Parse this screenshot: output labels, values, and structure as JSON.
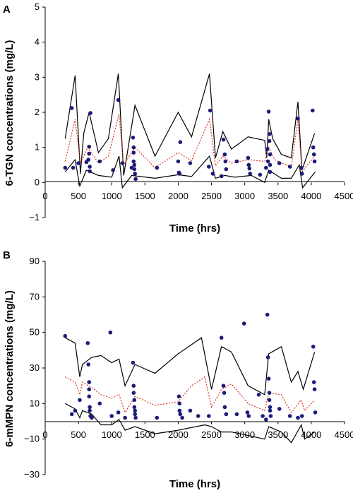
{
  "chart_data": [
    {
      "type": "scatter",
      "panel_label": "A",
      "xlabel": "Time (hrs)",
      "ylabel": "6-TGN concentrations (mg/L)",
      "xlim": [
        0,
        4500
      ],
      "ylim": [
        -1,
        5
      ],
      "x_ticks": [
        0,
        500,
        1000,
        1500,
        2000,
        2500,
        3000,
        3500,
        4000,
        4500
      ],
      "y_ticks": [
        -1,
        0,
        1,
        2,
        3,
        4,
        5
      ],
      "points": [
        [
          300,
          0.42
        ],
        [
          400,
          2.12
        ],
        [
          420,
          0.42
        ],
        [
          500,
          0.55
        ],
        [
          620,
          0.58
        ],
        [
          650,
          0.65
        ],
        [
          660,
          1.02
        ],
        [
          660,
          0.82
        ],
        [
          670,
          0.45
        ],
        [
          670,
          0.32
        ],
        [
          680,
          1.98
        ],
        [
          820,
          0.6
        ],
        [
          1020,
          0.35
        ],
        [
          1100,
          2.35
        ],
        [
          1160,
          0.55
        ],
        [
          1300,
          0.42
        ],
        [
          1320,
          1.28
        ],
        [
          1330,
          1.0
        ],
        [
          1330,
          0.85
        ],
        [
          1330,
          0.6
        ],
        [
          1340,
          0.5
        ],
        [
          1340,
          0.38
        ],
        [
          1350,
          0.25
        ],
        [
          1360,
          0.1
        ],
        [
          1680,
          0.42
        ],
        [
          2000,
          0.6
        ],
        [
          2010,
          0.28
        ],
        [
          2020,
          0.25
        ],
        [
          2030,
          1.15
        ],
        [
          2180,
          0.55
        ],
        [
          2460,
          0.45
        ],
        [
          2480,
          2.05
        ],
        [
          2520,
          0.25
        ],
        [
          2650,
          0.18
        ],
        [
          2680,
          1.22
        ],
        [
          2700,
          0.8
        ],
        [
          2710,
          0.6
        ],
        [
          2720,
          0.38
        ],
        [
          2880,
          0.6
        ],
        [
          3050,
          0.7
        ],
        [
          3060,
          0.5
        ],
        [
          3070,
          0.4
        ],
        [
          3080,
          0.25
        ],
        [
          3230,
          0.22
        ],
        [
          3320,
          0.42
        ],
        [
          3340,
          0.95
        ],
        [
          3350,
          0.6
        ],
        [
          3360,
          2.02
        ],
        [
          3370,
          1.38
        ],
        [
          3370,
          1.18
        ],
        [
          3380,
          0.8
        ],
        [
          3380,
          0.5
        ],
        [
          3380,
          0.3
        ],
        [
          3520,
          0.55
        ],
        [
          3680,
          0.45
        ],
        [
          3800,
          1.82
        ],
        [
          3850,
          0.42
        ],
        [
          3860,
          0.25
        ],
        [
          4020,
          2.05
        ],
        [
          4030,
          1.0
        ],
        [
          4040,
          0.8
        ],
        [
          4050,
          0.6
        ]
      ],
      "upper_line": [
        [
          300,
          1.25
        ],
        [
          450,
          3.05
        ],
        [
          530,
          0.25
        ],
        [
          580,
          1.4
        ],
        [
          660,
          2.0
        ],
        [
          800,
          0.85
        ],
        [
          950,
          1.25
        ],
        [
          1100,
          3.1
        ],
        [
          1180,
          0.2
        ],
        [
          1350,
          2.2
        ],
        [
          1650,
          0.75
        ],
        [
          2000,
          2.0
        ],
        [
          2200,
          1.3
        ],
        [
          2470,
          3.1
        ],
        [
          2560,
          0.7
        ],
        [
          2670,
          1.45
        ],
        [
          2800,
          0.95
        ],
        [
          3050,
          1.3
        ],
        [
          3300,
          1.2
        ],
        [
          3330,
          0.7
        ],
        [
          3360,
          1.8
        ],
        [
          3420,
          1.25
        ],
        [
          3550,
          0.8
        ],
        [
          3700,
          0.7
        ],
        [
          3800,
          2.3
        ],
        [
          3860,
          0.35
        ],
        [
          4050,
          1.4
        ]
      ],
      "median_line": [
        [
          300,
          0.6
        ],
        [
          450,
          1.8
        ],
        [
          530,
          0.55
        ],
        [
          640,
          1.0
        ],
        [
          800,
          0.55
        ],
        [
          950,
          0.75
        ],
        [
          1110,
          1.95
        ],
        [
          1180,
          0.5
        ],
        [
          1350,
          1.0
        ],
        [
          1650,
          0.42
        ],
        [
          2000,
          0.85
        ],
        [
          2200,
          0.62
        ],
        [
          2470,
          1.8
        ],
        [
          2560,
          0.48
        ],
        [
          2670,
          0.75
        ],
        [
          2800,
          0.55
        ],
        [
          3050,
          0.65
        ],
        [
          3300,
          0.6
        ],
        [
          3360,
          1.0
        ],
        [
          3450,
          0.65
        ],
        [
          3560,
          0.55
        ],
        [
          3700,
          0.45
        ],
        [
          3800,
          1.8
        ],
        [
          3860,
          0.3
        ],
        [
          4050,
          0.75
        ]
      ],
      "lower_line": [
        [
          300,
          0.3
        ],
        [
          450,
          0.65
        ],
        [
          520,
          -0.1
        ],
        [
          620,
          0.35
        ],
        [
          800,
          0.2
        ],
        [
          1000,
          0.15
        ],
        [
          1110,
          0.75
        ],
        [
          1160,
          -0.15
        ],
        [
          1300,
          0.2
        ],
        [
          1650,
          0.12
        ],
        [
          2000,
          0.22
        ],
        [
          2200,
          0.17
        ],
        [
          2470,
          0.75
        ],
        [
          2560,
          0.12
        ],
        [
          2700,
          0.2
        ],
        [
          2850,
          0.15
        ],
        [
          3100,
          0.2
        ],
        [
          3300,
          0.0
        ],
        [
          3360,
          0.35
        ],
        [
          3550,
          0.12
        ],
        [
          3700,
          0.12
        ],
        [
          3820,
          0.5
        ],
        [
          3870,
          -0.15
        ],
        [
          4060,
          0.3
        ]
      ]
    },
    {
      "type": "scatter",
      "panel_label": "B",
      "xlabel": "Time (hrs)",
      "ylabel": "6-mMPN concentrations (mg/L)",
      "xlim": [
        0,
        4500
      ],
      "ylim": [
        -30,
        90
      ],
      "x_ticks": [
        0,
        500,
        1000,
        1500,
        2000,
        2500,
        3000,
        3500,
        4000,
        4500
      ],
      "y_ticks": [
        -30,
        -10,
        10,
        30,
        50,
        70,
        90
      ],
      "points": [
        [
          300,
          48
        ],
        [
          400,
          4
        ],
        [
          450,
          6
        ],
        [
          520,
          12
        ],
        [
          640,
          44
        ],
        [
          650,
          32
        ],
        [
          660,
          22
        ],
        [
          660,
          18
        ],
        [
          660,
          14
        ],
        [
          670,
          8
        ],
        [
          670,
          6
        ],
        [
          680,
          3
        ],
        [
          700,
          2
        ],
        [
          820,
          10
        ],
        [
          980,
          50
        ],
        [
          1000,
          3
        ],
        [
          1100,
          5
        ],
        [
          1200,
          2
        ],
        [
          1320,
          33
        ],
        [
          1330,
          20
        ],
        [
          1330,
          16
        ],
        [
          1340,
          12
        ],
        [
          1340,
          8
        ],
        [
          1350,
          6
        ],
        [
          1350,
          4
        ],
        [
          1360,
          2
        ],
        [
          1680,
          2
        ],
        [
          2010,
          14
        ],
        [
          2020,
          10
        ],
        [
          2020,
          6
        ],
        [
          2030,
          4
        ],
        [
          2060,
          2
        ],
        [
          2180,
          6
        ],
        [
          2300,
          3
        ],
        [
          2460,
          3
        ],
        [
          2650,
          47
        ],
        [
          2680,
          20
        ],
        [
          2690,
          16
        ],
        [
          2700,
          8
        ],
        [
          2720,
          4
        ],
        [
          2880,
          4
        ],
        [
          2990,
          55
        ],
        [
          3040,
          5
        ],
        [
          3060,
          3
        ],
        [
          3210,
          15
        ],
        [
          3270,
          3
        ],
        [
          3320,
          1
        ],
        [
          3340,
          60
        ],
        [
          3350,
          36
        ],
        [
          3360,
          24
        ],
        [
          3370,
          16
        ],
        [
          3370,
          12
        ],
        [
          3380,
          8
        ],
        [
          3380,
          6
        ],
        [
          3390,
          3
        ],
        [
          3520,
          7
        ],
        [
          3680,
          3
        ],
        [
          3800,
          2
        ],
        [
          3860,
          3
        ],
        [
          4030,
          42
        ],
        [
          4040,
          22
        ],
        [
          4050,
          18
        ],
        [
          4060,
          5
        ]
      ],
      "upper_line": [
        [
          300,
          47
        ],
        [
          450,
          44
        ],
        [
          520,
          25
        ],
        [
          560,
          32
        ],
        [
          700,
          36
        ],
        [
          840,
          37
        ],
        [
          1000,
          33
        ],
        [
          1110,
          35
        ],
        [
          1200,
          20
        ],
        [
          1350,
          32
        ],
        [
          1650,
          27
        ],
        [
          2000,
          38
        ],
        [
          2350,
          47
        ],
        [
          2500,
          18
        ],
        [
          2650,
          42
        ],
        [
          2800,
          39
        ],
        [
          3050,
          20
        ],
        [
          3300,
          15
        ],
        [
          3360,
          38
        ],
        [
          3550,
          42
        ],
        [
          3700,
          22
        ],
        [
          3800,
          28
        ],
        [
          3880,
          18
        ],
        [
          4050,
          39
        ]
      ],
      "median_line": [
        [
          300,
          25
        ],
        [
          450,
          22
        ],
        [
          520,
          15
        ],
        [
          560,
          22
        ],
        [
          700,
          19
        ],
        [
          840,
          15
        ],
        [
          1000,
          13
        ],
        [
          1110,
          15
        ],
        [
          1200,
          5
        ],
        [
          1350,
          14
        ],
        [
          1650,
          9
        ],
        [
          2000,
          11
        ],
        [
          2200,
          20
        ],
        [
          2400,
          25
        ],
        [
          2500,
          8
        ],
        [
          2650,
          18
        ],
        [
          2800,
          21
        ],
        [
          3050,
          10
        ],
        [
          3300,
          6
        ],
        [
          3360,
          16
        ],
        [
          3550,
          15
        ],
        [
          3700,
          5
        ],
        [
          3850,
          12
        ],
        [
          3900,
          6
        ],
        [
          4050,
          12
        ]
      ],
      "lower_line": [
        [
          300,
          10
        ],
        [
          450,
          7
        ],
        [
          520,
          2
        ],
        [
          560,
          6
        ],
        [
          700,
          4
        ],
        [
          840,
          -2
        ],
        [
          1000,
          -2
        ],
        [
          1110,
          1
        ],
        [
          1200,
          -5
        ],
        [
          1350,
          -3
        ],
        [
          1650,
          -7
        ],
        [
          2000,
          -5
        ],
        [
          2400,
          -2
        ],
        [
          2500,
          -3
        ],
        [
          2650,
          -6
        ],
        [
          2800,
          -6
        ],
        [
          3050,
          -8
        ],
        [
          3300,
          -10
        ],
        [
          3360,
          -3
        ],
        [
          3550,
          -6
        ],
        [
          3700,
          -12
        ],
        [
          3850,
          -2
        ],
        [
          3900,
          -10
        ],
        [
          4050,
          -6
        ]
      ]
    }
  ],
  "colors": {
    "points": "#1c1c78",
    "median_line": "#dd3322",
    "interval_lines": "#000000",
    "axes": "#000000"
  }
}
